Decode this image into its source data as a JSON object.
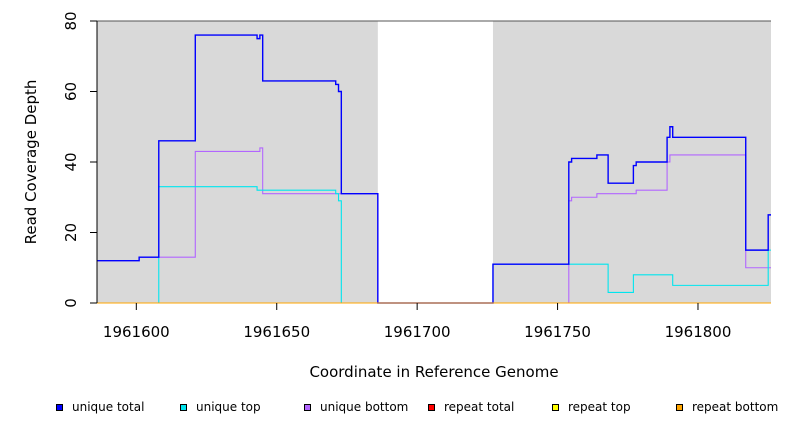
{
  "chart_data": {
    "type": "line",
    "xlabel": "Coordinate in Reference Genome",
    "ylabel": "Read Coverage Depth",
    "xlim": [
      1961586,
      1961826
    ],
    "ylim": [
      0,
      80
    ],
    "x_ticks": [
      1961600,
      1961650,
      1961700,
      1961750,
      1961800
    ],
    "y_ticks": [
      0,
      20,
      40,
      60,
      80
    ],
    "shaded_regions": [
      [
        1961586,
        1961686
      ],
      [
        1961727,
        1961826
      ]
    ],
    "shade_color": "#d9d9d9",
    "legend_position": "bottom",
    "series": [
      {
        "name": "unique total",
        "color": "#0000ff",
        "points": [
          [
            1961586,
            12
          ],
          [
            1961601,
            12
          ],
          [
            1961601,
            13
          ],
          [
            1961608,
            13
          ],
          [
            1961608,
            46
          ],
          [
            1961621,
            46
          ],
          [
            1961621,
            76
          ],
          [
            1961643,
            76
          ],
          [
            1961643,
            75
          ],
          [
            1961644,
            75
          ],
          [
            1961644,
            76
          ],
          [
            1961645,
            76
          ],
          [
            1961645,
            63
          ],
          [
            1961671,
            63
          ],
          [
            1961671,
            62
          ],
          [
            1961672,
            62
          ],
          [
            1961672,
            60
          ],
          [
            1961673,
            60
          ],
          [
            1961673,
            31
          ],
          [
            1961686,
            31
          ],
          [
            1961686,
            0
          ],
          [
            1961727,
            0
          ],
          [
            1961727,
            11
          ],
          [
            1961754,
            11
          ],
          [
            1961754,
            40
          ],
          [
            1961755,
            40
          ],
          [
            1961755,
            41
          ],
          [
            1961764,
            41
          ],
          [
            1961764,
            42
          ],
          [
            1961768,
            42
          ],
          [
            1961768,
            34
          ],
          [
            1961777,
            34
          ],
          [
            1961777,
            39
          ],
          [
            1961778,
            39
          ],
          [
            1961778,
            40
          ],
          [
            1961789,
            40
          ],
          [
            1961789,
            47
          ],
          [
            1961790,
            47
          ],
          [
            1961790,
            50
          ],
          [
            1961791,
            50
          ],
          [
            1961791,
            47
          ],
          [
            1961817,
            47
          ],
          [
            1961817,
            15
          ],
          [
            1961825,
            15
          ],
          [
            1961825,
            25
          ],
          [
            1961826,
            25
          ]
        ]
      },
      {
        "name": "unique top",
        "color": "#00e5ee",
        "points": [
          [
            1961586,
            0
          ],
          [
            1961608,
            0
          ],
          [
            1961608,
            33
          ],
          [
            1961643,
            33
          ],
          [
            1961643,
            32
          ],
          [
            1961671,
            32
          ],
          [
            1961671,
            31
          ],
          [
            1961672,
            31
          ],
          [
            1961672,
            29
          ],
          [
            1961673,
            29
          ],
          [
            1961673,
            0
          ],
          [
            1961727,
            0
          ],
          [
            1961727,
            11
          ],
          [
            1961768,
            11
          ],
          [
            1961768,
            3
          ],
          [
            1961777,
            3
          ],
          [
            1961777,
            8
          ],
          [
            1961791,
            8
          ],
          [
            1961791,
            5
          ],
          [
            1961825,
            5
          ],
          [
            1961825,
            15
          ],
          [
            1961826,
            15
          ]
        ]
      },
      {
        "name": "unique bottom",
        "color": "#b266ff",
        "points": [
          [
            1961586,
            12
          ],
          [
            1961601,
            12
          ],
          [
            1961601,
            13
          ],
          [
            1961621,
            13
          ],
          [
            1961621,
            43
          ],
          [
            1961644,
            43
          ],
          [
            1961644,
            44
          ],
          [
            1961645,
            44
          ],
          [
            1961645,
            31
          ],
          [
            1961686,
            31
          ],
          [
            1961686,
            0
          ],
          [
            1961754,
            0
          ],
          [
            1961754,
            29
          ],
          [
            1961755,
            29
          ],
          [
            1961755,
            30
          ],
          [
            1961764,
            30
          ],
          [
            1961764,
            31
          ],
          [
            1961778,
            31
          ],
          [
            1961778,
            32
          ],
          [
            1961789,
            32
          ],
          [
            1961789,
            40
          ],
          [
            1961790,
            40
          ],
          [
            1961790,
            42
          ],
          [
            1961817,
            42
          ],
          [
            1961817,
            10
          ],
          [
            1961826,
            10
          ]
        ]
      },
      {
        "name": "repeat total",
        "color": "#ff0000",
        "points": [
          [
            1961586,
            0
          ],
          [
            1961826,
            0
          ]
        ]
      },
      {
        "name": "repeat top",
        "color": "#ffff00",
        "points": [
          [
            1961586,
            0
          ],
          [
            1961826,
            0
          ]
        ]
      },
      {
        "name": "repeat bottom",
        "color": "#ffa500",
        "points": [
          [
            1961586,
            0
          ],
          [
            1961826,
            0
          ]
        ]
      }
    ]
  }
}
